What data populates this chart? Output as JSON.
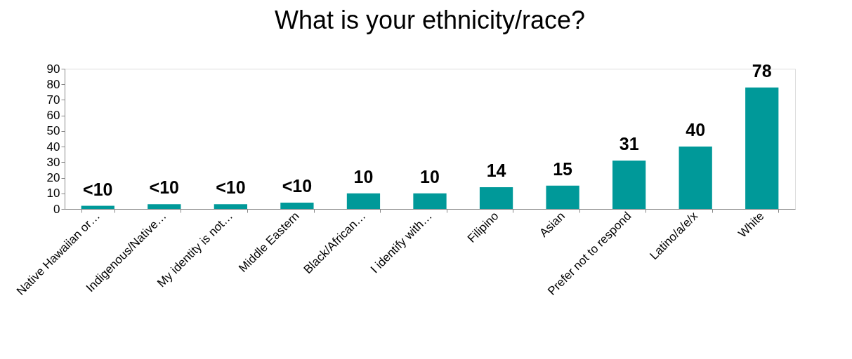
{
  "chart_data": {
    "type": "bar",
    "title": "What is your ethnicity/race?",
    "categories": [
      "Native Hawaiian or…",
      "Indigenous/Native…",
      "My identity is not…",
      "Middle Eastern",
      "Black/African…",
      "I identify with…",
      "Filipino",
      "Asian",
      "Prefer not to respond",
      "Latino/a/e/x",
      "White"
    ],
    "values": [
      2,
      3,
      3,
      4,
      10,
      10,
      14,
      15,
      31,
      40,
      78
    ],
    "value_labels": [
      "<10",
      "<10",
      "<10",
      "<10",
      "10",
      "10",
      "14",
      "15",
      "31",
      "40",
      "78"
    ],
    "color": "#009999",
    "ylim": [
      0,
      90
    ],
    "yticks": [
      0,
      10,
      20,
      30,
      40,
      50,
      60,
      70,
      80,
      90
    ],
    "grid": false
  }
}
